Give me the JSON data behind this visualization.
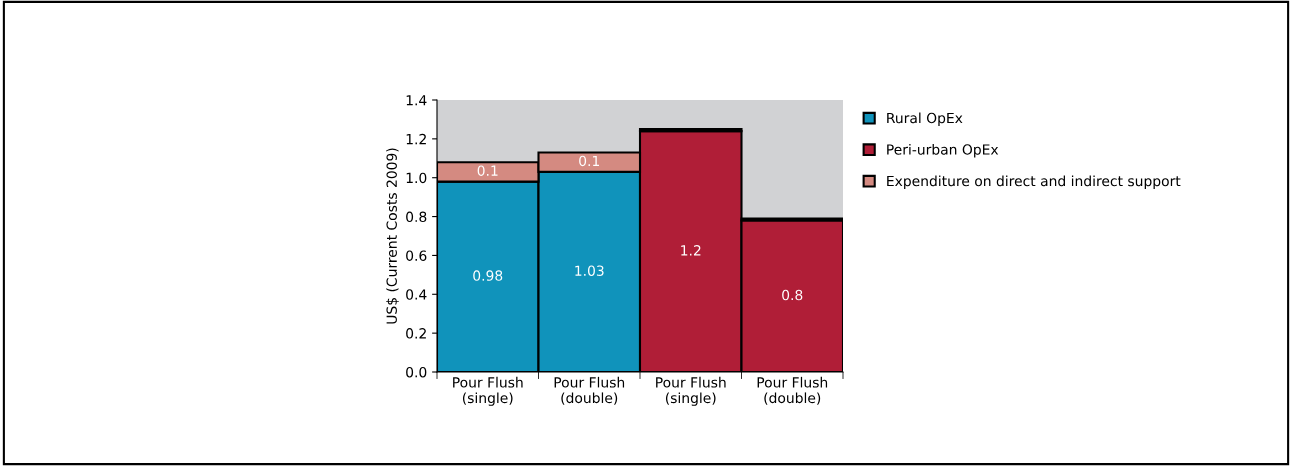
{
  "chart_data": {
    "type": "bar",
    "stacked": true,
    "ylabel": "US$ (Current Costs 2009)",
    "categories": [
      "Pour Flush\n(single)",
      "Pour Flush\n(double)",
      "Pour Flush\n(single)",
      "Pour Flush\n(double)"
    ],
    "series": [
      {
        "name": "Rural OpEx",
        "color": "#1093bb",
        "values": [
          0.98,
          1.03,
          null,
          null
        ],
        "value_labels": [
          "0.98",
          "1.03",
          null,
          null
        ]
      },
      {
        "name": "Peri-urban OpEx",
        "color": "#b01e37",
        "values": [
          null,
          null,
          1.24,
          0.78
        ],
        "value_labels": [
          null,
          null,
          "1.2",
          "0.8"
        ]
      },
      {
        "name": "Expenditure on direct and indirect support",
        "color": "#d48a81",
        "values": [
          0.1,
          0.1,
          0.01,
          0.01
        ],
        "value_labels": [
          "0.1",
          "0.1",
          null,
          null
        ]
      }
    ],
    "ylim": [
      0,
      1.4
    ],
    "yticks": [
      {
        "value": 0,
        "label": "0.0"
      },
      {
        "value": 0.2,
        "label": "0.2"
      },
      {
        "value": 0.4,
        "label": "0.4"
      },
      {
        "value": 0.6,
        "label": "0.6"
      },
      {
        "value": 0.8,
        "label": "0.8"
      },
      {
        "value": 1.0,
        "label": "1.0"
      },
      {
        "value": 1.2,
        "label": "1.2"
      },
      {
        "value": 1.4,
        "label": "1.4"
      }
    ],
    "legend": "right",
    "grid": false
  }
}
